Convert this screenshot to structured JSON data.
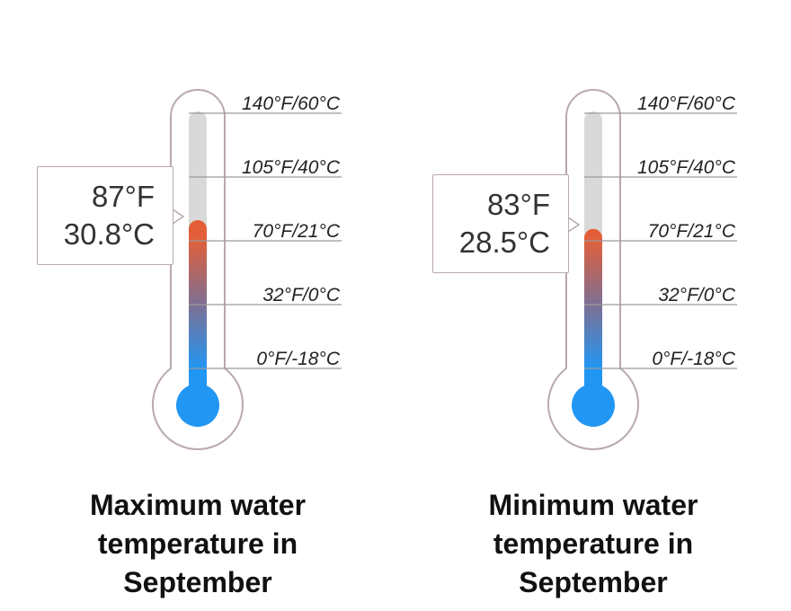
{
  "scale_labels": [
    "140°F/60°C",
    "105°F/40°C",
    "70°F/21°C",
    "32°F/0°C",
    "0°F/-18°C"
  ],
  "thermometers": [
    {
      "reading_f": "87°F",
      "reading_c": "30.8°C",
      "fill_fraction": 0.63,
      "caption": [
        "Maximum water",
        "temperature in",
        "September"
      ]
    },
    {
      "reading_f": "83°F",
      "reading_c": "28.5°C",
      "fill_fraction": 0.6,
      "caption": [
        "Minimum water",
        "temperature in",
        "September"
      ]
    }
  ],
  "colors": {
    "hot": "#e8572c",
    "cold": "#2196f3",
    "empty": "#d9d9d9",
    "outline": "#b9a9a9"
  }
}
